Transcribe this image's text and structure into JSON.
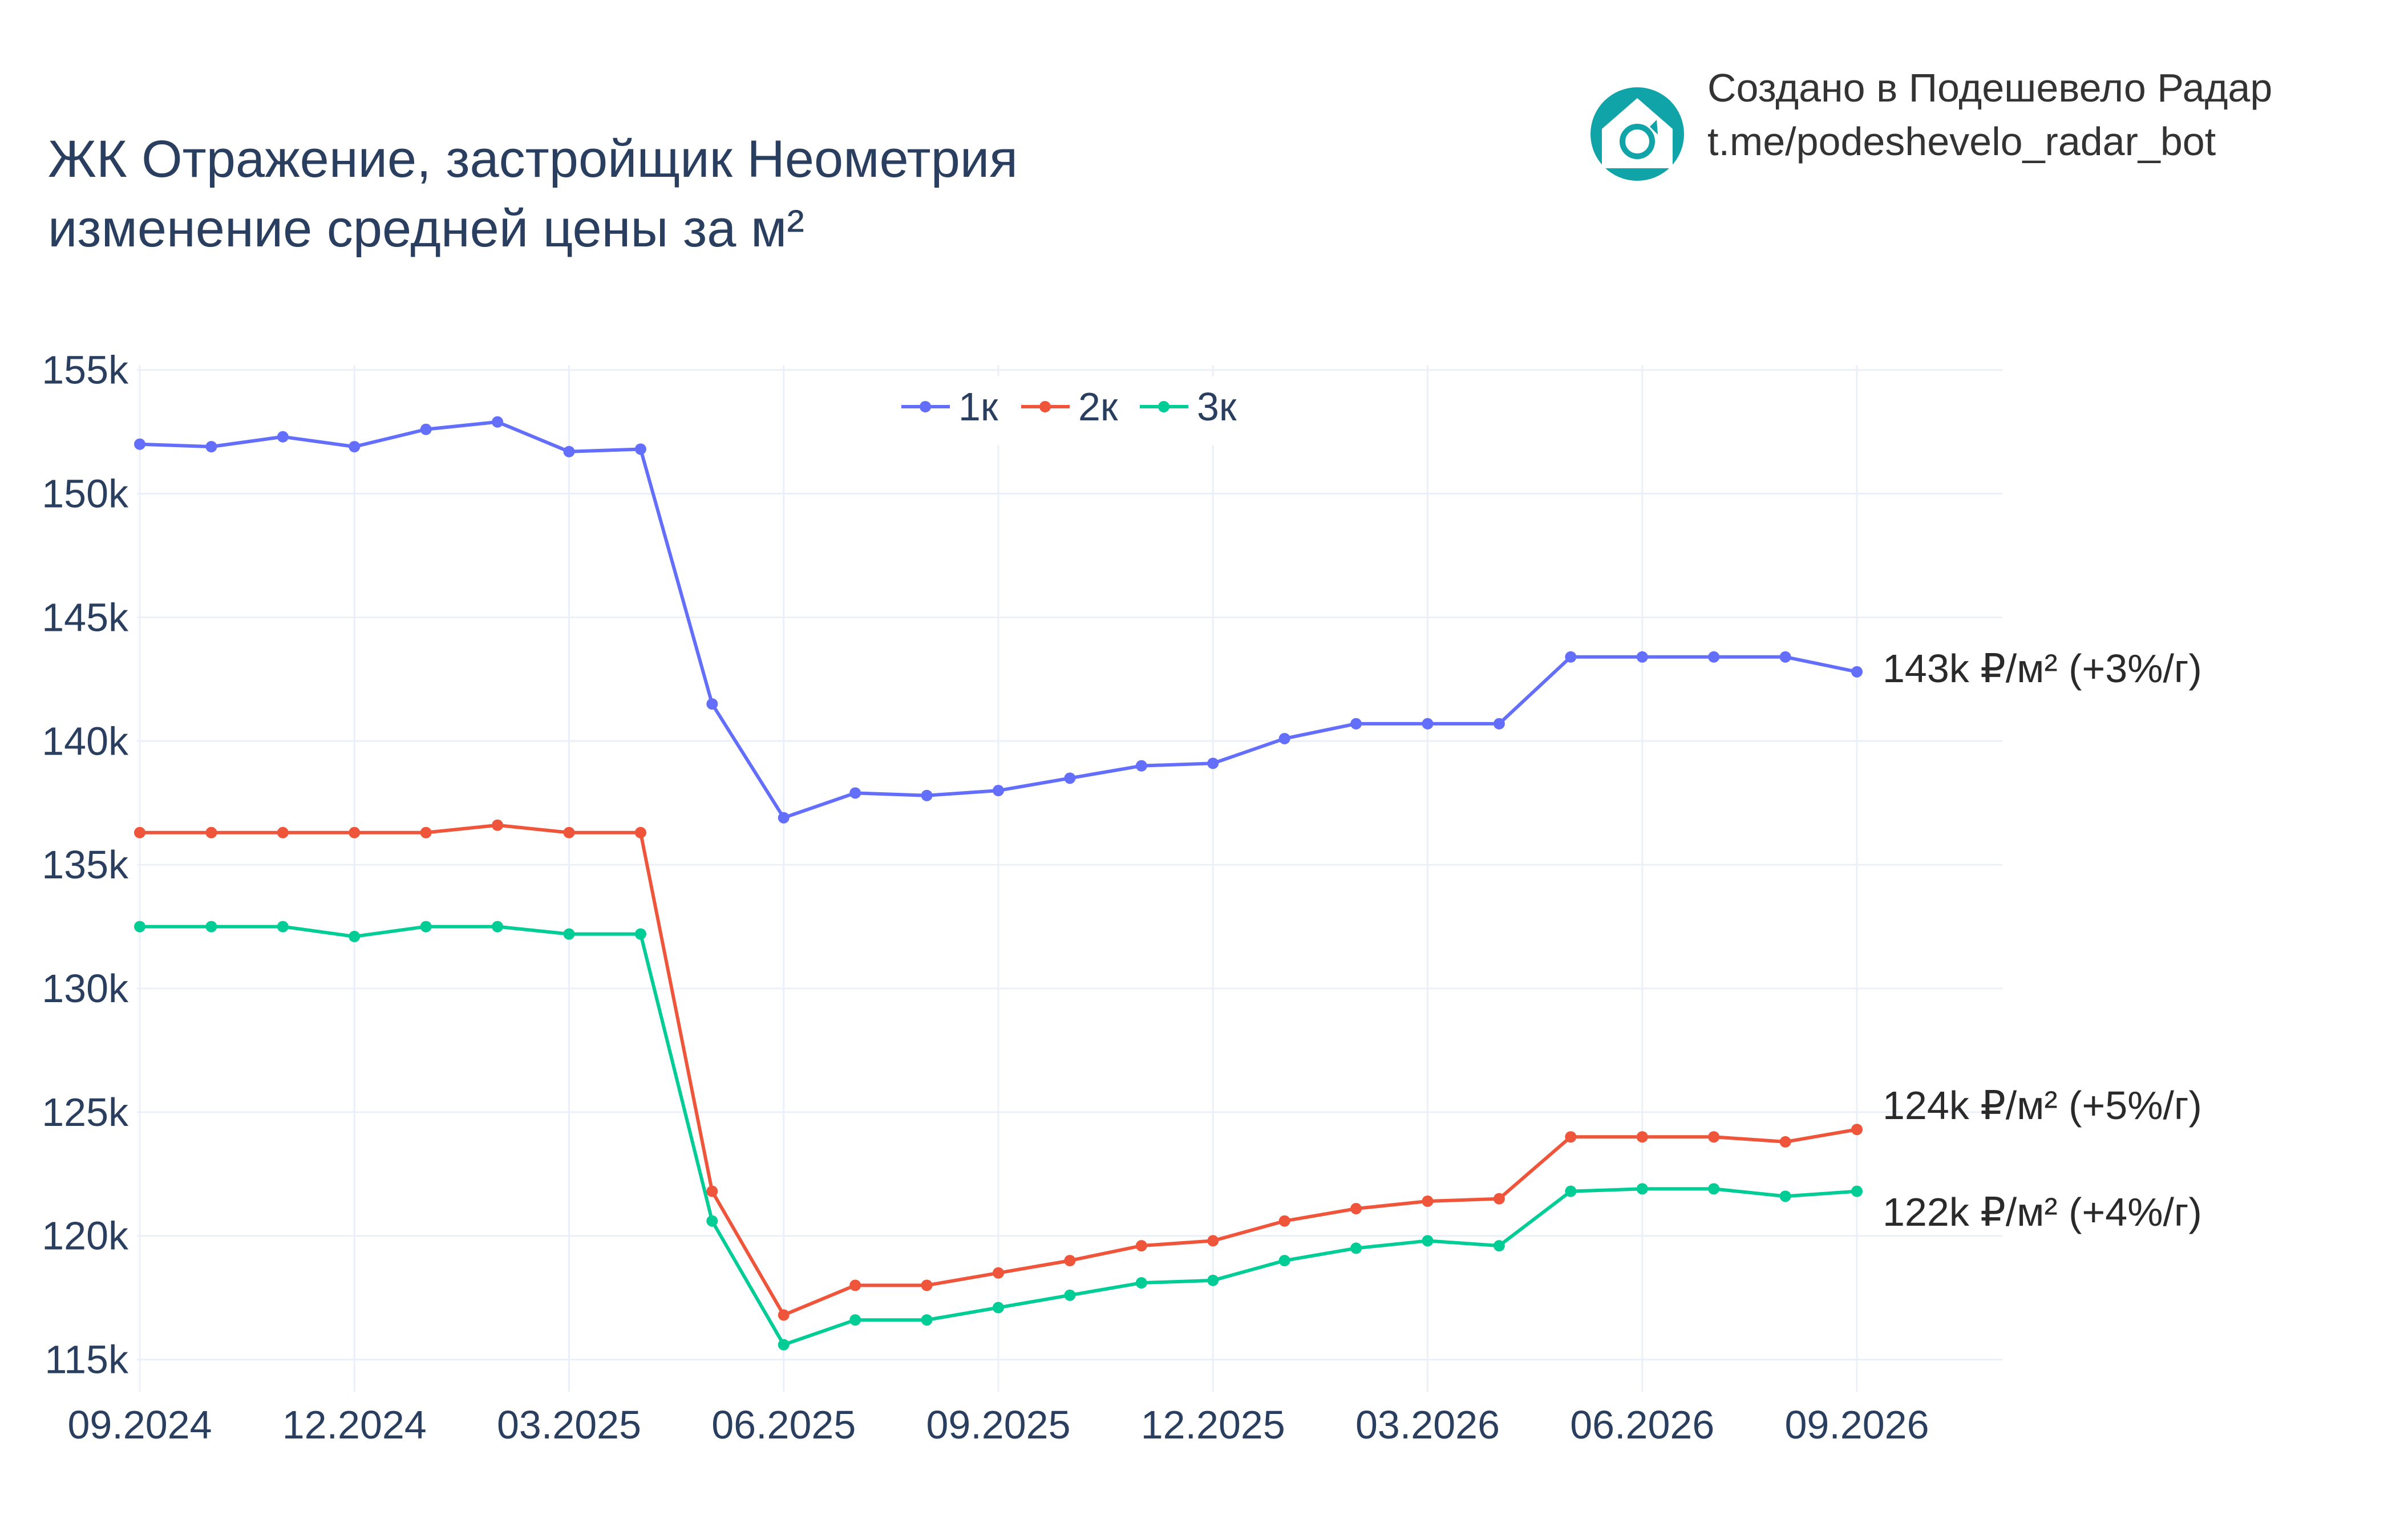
{
  "title_lines": [
    "ЖК Отражение, застройщик Неометрия",
    "изменение средней цены за м²"
  ],
  "branding": {
    "line1": "Создано в Подешевело Радар",
    "line2": "t.me/podeshevelo_radar_bot",
    "logo_icon": "house-refresh-icon",
    "logo_color": "#10a3a8"
  },
  "chart_data": {
    "type": "line",
    "title": "ЖК Отражение, застройщик Неометрия изменение средней цены за м²",
    "xlabel": "",
    "ylabel": "",
    "x": [
      "09.2024",
      "10.2024",
      "11.2024",
      "12.2024",
      "01.2025",
      "02.2025",
      "03.2025",
      "04.2025",
      "05.2025",
      "06.2025",
      "07.2025",
      "08.2025",
      "09.2025",
      "10.2025",
      "11.2025",
      "12.2025",
      "01.2026",
      "02.2026",
      "03.2026",
      "04.2026",
      "05.2026",
      "06.2026",
      "07.2026",
      "08.2026",
      "09.2026"
    ],
    "x_ticks": [
      "09.2024",
      "12.2024",
      "03.2025",
      "06.2025",
      "09.2025",
      "12.2025",
      "03.2026",
      "06.2026",
      "09.2026"
    ],
    "y_ticks": [
      {
        "value": 115000,
        "label": "115k"
      },
      {
        "value": 120000,
        "label": "120k"
      },
      {
        "value": 125000,
        "label": "125k"
      },
      {
        "value": 130000,
        "label": "130k"
      },
      {
        "value": 135000,
        "label": "135k"
      },
      {
        "value": 140000,
        "label": "140k"
      },
      {
        "value": 145000,
        "label": "145k"
      },
      {
        "value": 150000,
        "label": "150k"
      },
      {
        "value": 155000,
        "label": "155k"
      }
    ],
    "ylim": [
      113700,
      155200
    ],
    "grid": true,
    "legend_position": "top-center",
    "series": [
      {
        "name": "1к",
        "color": "#636efa",
        "values": [
          152000,
          151900,
          152300,
          151900,
          152600,
          152900,
          151700,
          151800,
          141500,
          136900,
          137900,
          137800,
          138000,
          138500,
          139000,
          139100,
          140100,
          140700,
          140700,
          140700,
          143400,
          143400,
          143400,
          143400,
          142800
        ],
        "end_label": "143k ₽/м² (+3%/г)"
      },
      {
        "name": "2к",
        "color": "#ef553b",
        "values": [
          136300,
          136300,
          136300,
          136300,
          136300,
          136600,
          136300,
          136300,
          121800,
          116800,
          118000,
          118000,
          118500,
          119000,
          119600,
          119800,
          120600,
          121100,
          121400,
          121500,
          124000,
          124000,
          124000,
          123800,
          124300
        ],
        "end_label": "124k ₽/м² (+5%/г)"
      },
      {
        "name": "3к",
        "color": "#00cc96",
        "values": [
          132500,
          132500,
          132500,
          132100,
          132500,
          132500,
          132200,
          132200,
          120600,
          115600,
          116600,
          116600,
          117100,
          117600,
          118100,
          118200,
          119000,
          119500,
          119800,
          119600,
          121800,
          121900,
          121900,
          121600,
          121800
        ],
        "end_label": "122k ₽/м² (+4%/г)"
      }
    ]
  }
}
